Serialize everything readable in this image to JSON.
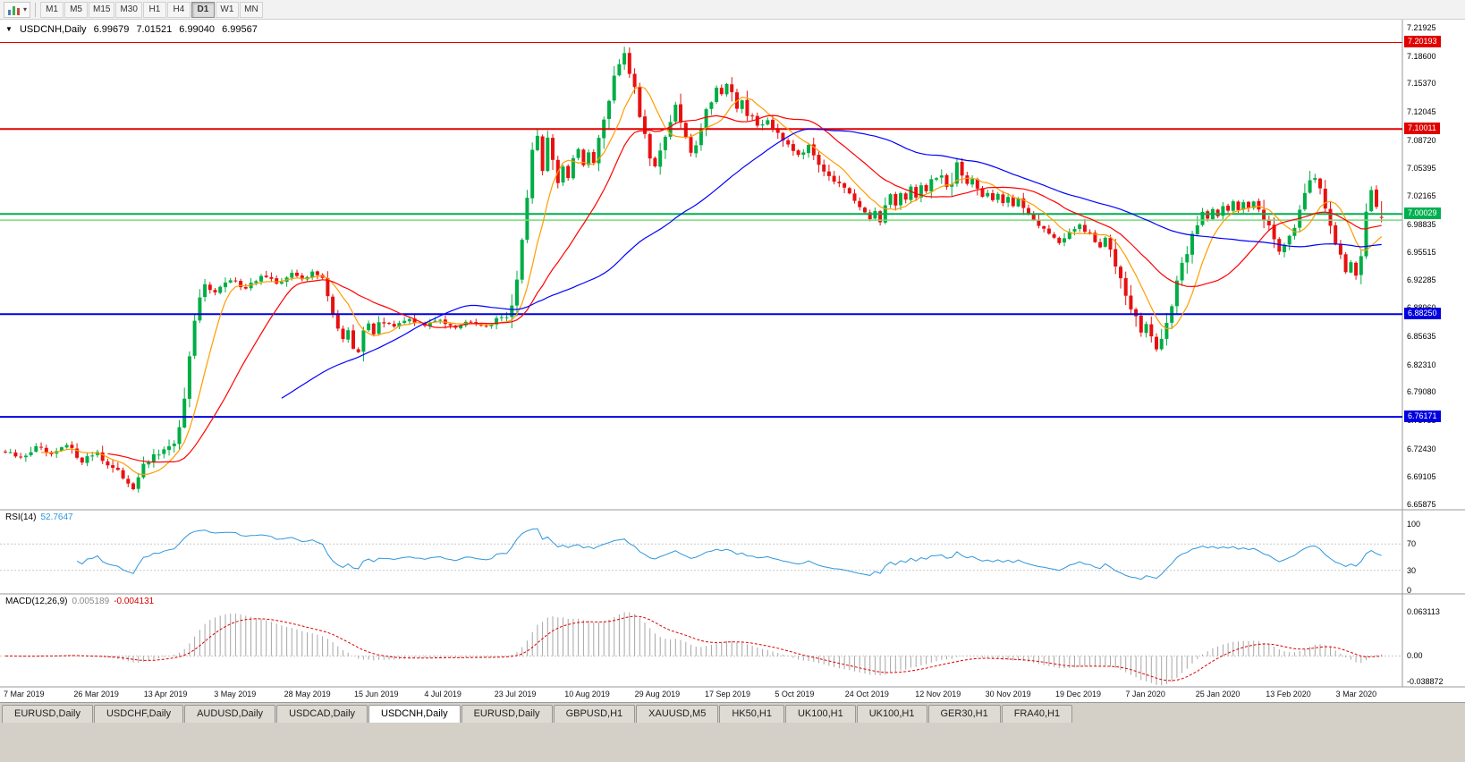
{
  "toolbar": {
    "timeframes": [
      "M1",
      "M5",
      "M15",
      "M30",
      "H1",
      "H4",
      "D1",
      "W1",
      "MN"
    ],
    "active_timeframe": "D1",
    "icons": {
      "chart_period": "bar-chart",
      "dropdown_caret": "▾"
    }
  },
  "chart_data": {
    "type": "candlestick",
    "title": "USDCNH,Daily",
    "title_arrow": "▼",
    "ohlc_display": {
      "open": "6.99679",
      "high": "7.01521",
      "low": "6.99040",
      "close": "6.99567"
    },
    "price_axis_ticks": [
      "7.21925",
      "7.18600",
      "7.15370",
      "7.12045",
      "7.08720",
      "7.05395",
      "7.02165",
      "6.98835",
      "6.95515",
      "6.92285",
      "6.88960",
      "6.85635",
      "6.82310",
      "6.79080",
      "6.75755",
      "6.72430",
      "6.69105",
      "6.65875"
    ],
    "price_axis_range": [
      6.65875,
      7.21925
    ],
    "date_labels": [
      "7 Mar 2019",
      "26 Mar 2019",
      "13 Apr 2019",
      "3 May 2019",
      "28 May 2019",
      "15 Jun 2019",
      "4 Jul 2019",
      "23 Jul 2019",
      "10 Aug 2019",
      "29 Aug 2019",
      "17 Sep 2019",
      "5 Oct 2019",
      "24 Oct 2019",
      "12 Nov 2019",
      "30 Nov 2019",
      "19 Dec 2019",
      "7 Jan 2020",
      "25 Jan 2020",
      "13 Feb 2020",
      "3 Mar 2020"
    ],
    "candle_count": 270,
    "up_color": "#00ad45",
    "down_color": "#e81010",
    "horizontal_lines": [
      {
        "price": 7.20193,
        "label": "7.20193",
        "color": "#e00000",
        "width": 1
      },
      {
        "price": 7.10011,
        "label": "7.10011",
        "color": "#e00000",
        "width": 2
      },
      {
        "price": 7.00029,
        "label": "7.00029",
        "color": "#00b050",
        "width": 2
      },
      {
        "price": 6.993,
        "label": null,
        "color": "#7bd87b",
        "width": 1.5
      },
      {
        "price": 6.8825,
        "label": "6.88250",
        "color": "#0000e0",
        "width": 2
      },
      {
        "price": 6.76171,
        "label": "6.76171",
        "color": "#0000e0",
        "width": 2
      }
    ],
    "moving_averages": [
      {
        "name": "fast-ma",
        "period": 8,
        "color": "#ff9c00"
      },
      {
        "name": "medium-ma",
        "period": 21,
        "color": "#ff0000"
      },
      {
        "name": "slow-ma",
        "period": 55,
        "color": "#0000ff"
      }
    ],
    "close_path_anchors": [
      [
        0,
        6.72
      ],
      [
        3,
        6.713
      ],
      [
        6,
        6.726
      ],
      [
        9,
        6.716
      ],
      [
        12,
        6.728
      ],
      [
        15,
        6.71
      ],
      [
        18,
        6.721
      ],
      [
        20,
        6.705
      ],
      [
        22,
        6.696
      ],
      [
        24,
        6.686
      ],
      [
        25,
        6.678
      ],
      [
        26,
        6.694
      ],
      [
        28,
        6.71
      ],
      [
        30,
        6.719
      ],
      [
        32,
        6.724
      ],
      [
        34,
        6.744
      ],
      [
        35,
        6.782
      ],
      [
        36,
        6.826
      ],
      [
        37,
        6.868
      ],
      [
        38,
        6.9
      ],
      [
        39,
        6.916
      ],
      [
        41,
        6.91
      ],
      [
        44,
        6.922
      ],
      [
        47,
        6.914
      ],
      [
        50,
        6.927
      ],
      [
        53,
        6.919
      ],
      [
        56,
        6.93
      ],
      [
        58,
        6.923
      ],
      [
        60,
        6.934
      ],
      [
        62,
        6.921
      ],
      [
        63,
        6.905
      ],
      [
        64,
        6.884
      ],
      [
        65,
        6.866
      ],
      [
        66,
        6.852
      ],
      [
        67,
        6.864
      ],
      [
        68,
        6.846
      ],
      [
        69,
        6.84
      ],
      [
        70,
        6.857
      ],
      [
        71,
        6.871
      ],
      [
        72,
        6.86
      ],
      [
        73,
        6.875
      ],
      [
        76,
        6.867
      ],
      [
        79,
        6.877
      ],
      [
        82,
        6.869
      ],
      [
        85,
        6.876
      ],
      [
        88,
        6.868
      ],
      [
        91,
        6.875
      ],
      [
        94,
        6.869
      ],
      [
        96,
        6.875
      ],
      [
        98,
        6.883
      ],
      [
        99,
        6.893
      ],
      [
        100,
        6.918
      ],
      [
        101,
        6.97
      ],
      [
        102,
        7.024
      ],
      [
        103,
        7.076
      ],
      [
        104,
        7.094
      ],
      [
        105,
        7.052
      ],
      [
        106,
        7.09
      ],
      [
        107,
        7.066
      ],
      [
        108,
        7.034
      ],
      [
        109,
        7.056
      ],
      [
        110,
        7.04
      ],
      [
        111,
        7.062
      ],
      [
        112,
        7.079
      ],
      [
        113,
        7.057
      ],
      [
        114,
        7.071
      ],
      [
        115,
        7.059
      ],
      [
        116,
        7.087
      ],
      [
        117,
        7.109
      ],
      [
        118,
        7.134
      ],
      [
        119,
        7.157
      ],
      [
        120,
        7.177
      ],
      [
        121,
        7.191
      ],
      [
        122,
        7.169
      ],
      [
        123,
        7.147
      ],
      [
        124,
        7.119
      ],
      [
        125,
        7.094
      ],
      [
        126,
        7.071
      ],
      [
        127,
        7.057
      ],
      [
        128,
        7.074
      ],
      [
        129,
        7.094
      ],
      [
        130,
        7.111
      ],
      [
        131,
        7.127
      ],
      [
        132,
        7.109
      ],
      [
        133,
        7.089
      ],
      [
        134,
        7.071
      ],
      [
        135,
        7.087
      ],
      [
        136,
        7.104
      ],
      [
        137,
        7.121
      ],
      [
        138,
        7.137
      ],
      [
        139,
        7.149
      ],
      [
        140,
        7.141
      ],
      [
        141,
        7.151
      ],
      [
        142,
        7.137
      ],
      [
        143,
        7.124
      ],
      [
        144,
        7.134
      ],
      [
        145,
        7.119
      ],
      [
        147,
        7.104
      ],
      [
        149,
        7.111
      ],
      [
        151,
        7.097
      ],
      [
        153,
        7.084
      ],
      [
        155,
        7.071
      ],
      [
        157,
        7.079
      ],
      [
        159,
        7.061
      ],
      [
        161,
        7.047
      ],
      [
        163,
        7.034
      ],
      [
        165,
        7.021
      ],
      [
        167,
        7.007
      ],
      [
        169,
        6.994
      ],
      [
        170,
        7.004
      ],
      [
        171,
        6.991
      ],
      [
        172,
        7.007
      ],
      [
        173,
        7.021
      ],
      [
        174,
        7.011
      ],
      [
        175,
        7.027
      ],
      [
        176,
        7.017
      ],
      [
        177,
        7.031
      ],
      [
        178,
        7.021
      ],
      [
        179,
        7.034
      ],
      [
        180,
        7.027
      ],
      [
        181,
        7.041
      ],
      [
        183,
        7.047
      ],
      [
        184,
        7.031
      ],
      [
        185,
        7.039
      ],
      [
        186,
        7.061
      ],
      [
        187,
        7.044
      ],
      [
        188,
        7.034
      ],
      [
        189,
        7.039
      ],
      [
        190,
        7.029
      ],
      [
        191,
        7.021
      ],
      [
        192,
        7.027
      ],
      [
        193,
        7.017
      ],
      [
        194,
        7.025
      ],
      [
        195,
        7.014
      ],
      [
        196,
        7.021
      ],
      [
        197,
        7.009
      ],
      [
        198,
        7.017
      ],
      [
        200,
        7.001
      ],
      [
        202,
        6.989
      ],
      [
        204,
        6.977
      ],
      [
        206,
        6.967
      ],
      [
        208,
        6.977
      ],
      [
        210,
        6.987
      ],
      [
        212,
        6.974
      ],
      [
        214,
        6.961
      ],
      [
        215,
        6.971
      ],
      [
        216,
        6.957
      ],
      [
        217,
        6.944
      ],
      [
        218,
        6.929
      ],
      [
        219,
        6.911
      ],
      [
        220,
        6.894
      ],
      [
        221,
        6.877
      ],
      [
        222,
        6.861
      ],
      [
        223,
        6.871
      ],
      [
        224,
        6.851
      ],
      [
        225,
        6.842
      ],
      [
        226,
        6.857
      ],
      [
        227,
        6.872
      ],
      [
        228,
        6.893
      ],
      [
        229,
        6.915
      ],
      [
        230,
        6.938
      ],
      [
        231,
        6.958
      ],
      [
        232,
        6.975
      ],
      [
        233,
        6.99
      ],
      [
        234,
        7.002
      ],
      [
        235,
        6.995
      ],
      [
        236,
        7.008
      ],
      [
        237,
        6.999
      ],
      [
        238,
        7.011
      ],
      [
        239,
        7.004
      ],
      [
        240,
        7.014
      ],
      [
        241,
        7.004
      ],
      [
        242,
        7.014
      ],
      [
        243,
        7.007
      ],
      [
        244,
        7.017
      ],
      [
        245,
        7.009
      ],
      [
        246,
        6.997
      ],
      [
        247,
        6.984
      ],
      [
        248,
        6.969
      ],
      [
        249,
        6.957
      ],
      [
        250,
        6.967
      ],
      [
        251,
        6.977
      ],
      [
        252,
        6.989
      ],
      [
        253,
        7.004
      ],
      [
        254,
        7.019
      ],
      [
        255,
        7.034
      ],
      [
        256,
        7.044
      ],
      [
        257,
        7.029
      ],
      [
        258,
        7.011
      ],
      [
        259,
        6.989
      ],
      [
        260,
        6.967
      ],
      [
        261,
        6.947
      ],
      [
        262,
        6.931
      ],
      [
        263,
        6.944
      ],
      [
        264,
        6.929
      ],
      [
        265,
        6.957
      ],
      [
        266,
        6.999
      ],
      [
        267,
        7.03
      ],
      [
        268,
        7.008
      ],
      [
        269,
        6.9957
      ]
    ],
    "extremes": {
      "peak_index": 121,
      "peak_high": 7.1968,
      "trough_index": 225,
      "trough_low": 6.8385
    },
    "indicators": {
      "rsi": {
        "label": "RSI(14)",
        "value": "52.7647",
        "axis": [
          "100",
          "70",
          "30",
          "0"
        ],
        "levels": [
          70,
          30
        ],
        "color": "#2f96dc"
      },
      "macd": {
        "label": "MACD(12,26,9)",
        "value_main": "0.005189",
        "value_signal": "-0.004131",
        "axis": [
          "0.063113",
          "0.00",
          "-0.038872"
        ],
        "histogram_color": "#a6a6a6",
        "signal_color": "#e00000"
      }
    }
  },
  "tabs": {
    "items": [
      "EURUSD,Daily",
      "USDCHF,Daily",
      "AUDUSD,Daily",
      "USDCAD,Daily",
      "USDCNH,Daily",
      "EURUSD,Daily",
      "GBPUSD,H1",
      "XAUUSD,M5",
      "HK50,H1",
      "UK100,H1",
      "UK100,H1",
      "GER30,H1",
      "FRA40,H1"
    ],
    "active_index": 4
  }
}
